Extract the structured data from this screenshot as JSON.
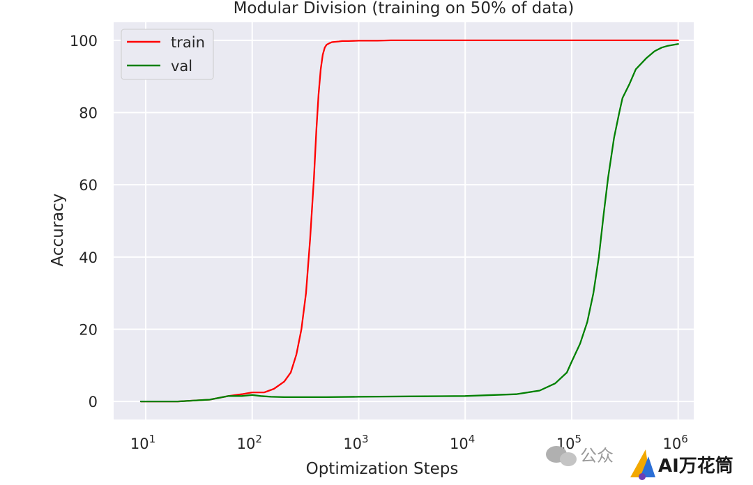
{
  "chart_data": {
    "type": "line",
    "title": "Modular Division (training on 50% of data)",
    "xlabel": "Optimization Steps",
    "ylabel": "Accuracy",
    "xscale": "log",
    "xlim": [
      5,
      1400000
    ],
    "ylim": [
      -5,
      105
    ],
    "xticks": [
      10,
      100,
      1000,
      10000,
      100000,
      1000000
    ],
    "xtick_labels": [
      {
        "base": "10",
        "exp": "1"
      },
      {
        "base": "10",
        "exp": "2"
      },
      {
        "base": "10",
        "exp": "3"
      },
      {
        "base": "10",
        "exp": "4"
      },
      {
        "base": "10",
        "exp": "5"
      },
      {
        "base": "10",
        "exp": "6"
      }
    ],
    "yticks": [
      0,
      20,
      40,
      60,
      80,
      100
    ],
    "ytick_labels": [
      "0",
      "20",
      "40",
      "60",
      "80",
      "100"
    ],
    "grid": true,
    "background": "#eaeaf2",
    "legend": {
      "position": "top-left"
    },
    "series": [
      {
        "name": "train",
        "color": "#ff0000",
        "x": [
          9,
          20,
          40,
          60,
          80,
          100,
          130,
          160,
          200,
          230,
          260,
          290,
          320,
          350,
          380,
          400,
          420,
          440,
          460,
          480,
          500,
          530,
          560,
          600,
          650,
          700,
          800,
          1000,
          1200,
          1500,
          2000,
          3000,
          5000,
          10000,
          100000,
          1000000
        ],
        "y": [
          0,
          0,
          0.5,
          1.5,
          2.0,
          2.5,
          2.5,
          3.5,
          5.5,
          8.0,
          13.0,
          20.0,
          30.0,
          45.0,
          62.0,
          75.0,
          85.0,
          92.0,
          96.0,
          98.0,
          98.8,
          99.2,
          99.5,
          99.6,
          99.7,
          99.8,
          99.8,
          99.9,
          99.9,
          99.9,
          100,
          100,
          100,
          100,
          100,
          100
        ]
      },
      {
        "name": "val",
        "color": "#008000",
        "x": [
          9,
          20,
          40,
          60,
          80,
          100,
          120,
          150,
          200,
          500,
          1000,
          3000,
          10000,
          30000,
          50000,
          70000,
          90000,
          100000,
          120000,
          140000,
          160000,
          180000,
          200000,
          220000,
          250000,
          280000,
          300000,
          350000,
          400000,
          500000,
          600000,
          700000,
          800000,
          1000000
        ],
        "y": [
          0,
          0,
          0.5,
          1.5,
          1.5,
          1.8,
          1.5,
          1.3,
          1.2,
          1.2,
          1.3,
          1.4,
          1.5,
          2.0,
          3.0,
          5.0,
          8.0,
          11.0,
          16.0,
          22.0,
          30.0,
          40.0,
          52.0,
          62.0,
          73.0,
          80.0,
          84.0,
          88.0,
          92.0,
          95.0,
          97.0,
          98.0,
          98.5,
          99.0
        ]
      }
    ]
  },
  "watermark": {
    "text": "公众",
    "brand": "AI万花筒"
  }
}
